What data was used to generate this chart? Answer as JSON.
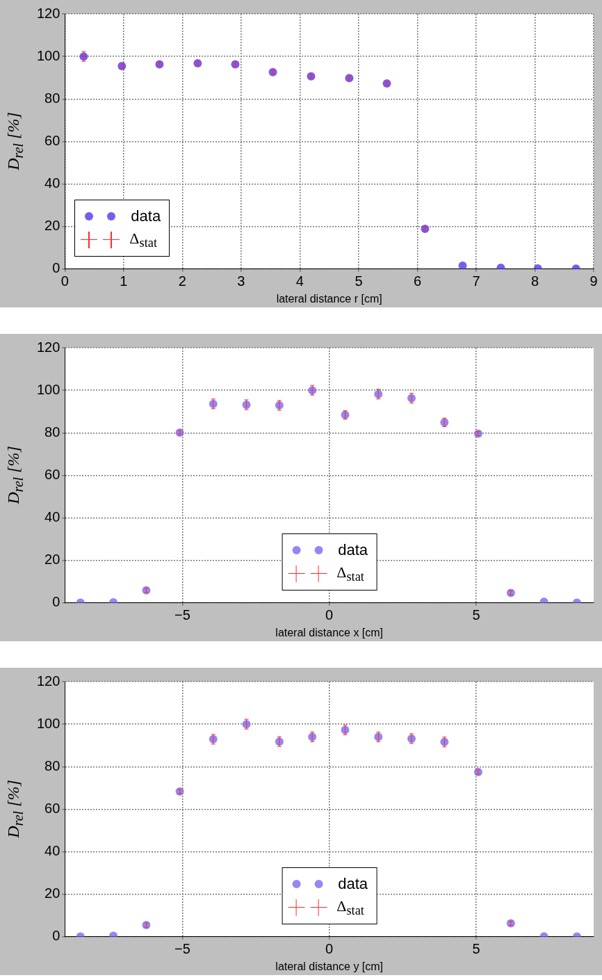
{
  "chart_data": [
    {
      "type": "scatter",
      "xlabel": "lateral distance r [cm]",
      "ylabel": "D$_{rel}$ [%]",
      "x": [
        0.32,
        0.97,
        1.61,
        2.26,
        2.9,
        3.54,
        4.19,
        4.84,
        5.48,
        6.13,
        6.77,
        7.42,
        8.05,
        8.7
      ],
      "series": [
        {
          "name": "data",
          "color": "#5533ee",
          "values": [
            100,
            95.5,
            96.3,
            96.8,
            96.3,
            92.6,
            90.6,
            89.8,
            87.3,
            18.9,
            1.6,
            0.6,
            0.3,
            0.2
          ],
          "errors": [
            2.3,
            1,
            1,
            1,
            1,
            1,
            1,
            1,
            1,
            1,
            null,
            null,
            null,
            null
          ]
        }
      ],
      "xlim": [
        0,
        9
      ],
      "xticks": [
        0,
        1,
        2,
        3,
        4,
        5,
        6,
        7,
        8,
        9
      ],
      "ylim": [
        0,
        120
      ],
      "yticks": [
        0,
        20,
        40,
        60,
        80,
        100,
        120
      ],
      "grid": true,
      "marker": "circle",
      "legend": "bottom left",
      "annotations": [
        "Δ$_{stat}$"
      ]
    },
    {
      "type": "scatter",
      "xlabel": "lateral distance x [cm]",
      "ylabel": "D$_{rel}$ [%]",
      "x": [
        -8.47,
        -7.35,
        -6.23,
        -5.09,
        -3.95,
        -2.82,
        -1.7,
        -0.58,
        0.54,
        1.67,
        2.8,
        3.92,
        5.07,
        6.18,
        7.31,
        8.43
      ],
      "series": [
        {
          "name": "data",
          "color": "#7b68ee",
          "values": [
            0.1,
            0.3,
            5.9,
            80.1,
            93.6,
            93.2,
            92.9,
            100,
            88.4,
            98.2,
            96.3,
            84.9,
            79.6,
            4.7,
            0.5,
            0.1
          ],
          "errors": [
            null,
            null,
            1,
            1,
            2.3,
            2.3,
            2.3,
            2.3,
            2,
            2.3,
            2.3,
            2,
            1,
            1,
            null,
            null
          ]
        }
      ],
      "xlim": [
        -9,
        9
      ],
      "xticks": [
        {
          "value": -5,
          "label": "−5"
        },
        0,
        5
      ],
      "ylim": [
        0,
        120
      ],
      "yticks": [
        0,
        20,
        40,
        60,
        80,
        100,
        120
      ],
      "grid": true,
      "marker": "circle",
      "legend": "bottom",
      "annotations": [
        "Δ$_{stat}$"
      ]
    },
    {
      "type": "scatter",
      "xlabel": "lateral distance y [cm]",
      "ylabel": "D$_{rel}$ [%]",
      "x": [
        -8.47,
        -7.35,
        -6.23,
        -5.09,
        -3.95,
        -2.82,
        -1.7,
        -0.58,
        0.54,
        1.67,
        2.8,
        3.92,
        5.07,
        6.18,
        7.31,
        8.43
      ],
      "series": [
        {
          "name": "data",
          "color": "#7b68ee",
          "values": [
            0.1,
            0.4,
            5.5,
            68.3,
            92.9,
            100,
            91.8,
            94,
            97.3,
            94,
            93.2,
            91.6,
            77.5,
            6.3,
            0.2,
            0.1
          ],
          "errors": [
            null,
            null,
            1,
            1,
            2.3,
            2.3,
            2.3,
            2.3,
            2.3,
            2.3,
            2.3,
            2.3,
            1,
            1,
            null,
            null
          ]
        }
      ],
      "xlim": [
        -9,
        9
      ],
      "xticks": [
        {
          "value": -5,
          "label": "−5"
        },
        0,
        5
      ],
      "ylim": [
        0,
        120
      ],
      "yticks": [
        0,
        20,
        40,
        60,
        80,
        100,
        120
      ],
      "grid": true,
      "marker": "circle",
      "legend": "bottom",
      "annotations": [
        "Δ$_{stat}$"
      ]
    }
  ]
}
